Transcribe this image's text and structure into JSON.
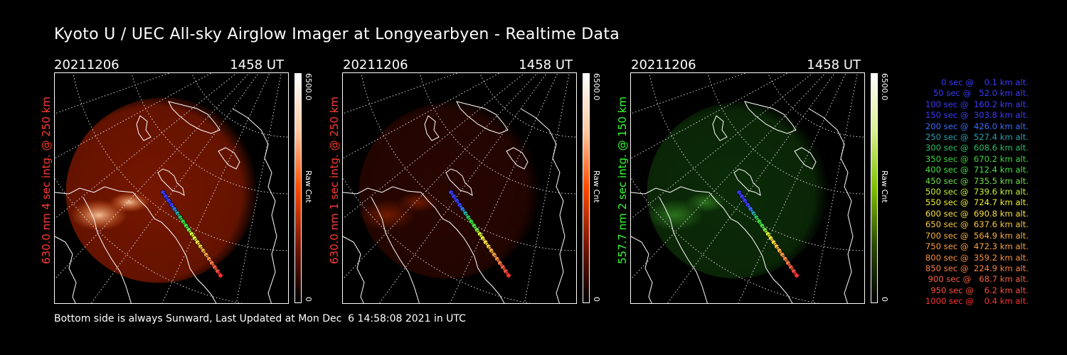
{
  "title": "Kyoto U / UEC All-sky Airglow Imager at Longyearbyen - Realtime Data",
  "footer": "Bottom side is always Sunward, Last Updated at Mon Dec  6 14:58:08 2021 in UTC",
  "panels": [
    {
      "date": "20211206",
      "time": "1458 UT",
      "ylabel": "630.0 nm 4 sec intg. @ 250 km",
      "label_color": "#ff3b2f",
      "colorbar_max": "6500.0",
      "colorbar_unit": "Raw Cnt",
      "colorbar_min": "0",
      "colorbar_colors": [
        "#000000",
        "#7a1500",
        "#ff4a00",
        "#ffc8a0",
        "#ffffff"
      ]
    },
    {
      "date": "20211206",
      "time": "1458 UT",
      "ylabel": "630.0 nm 1 sec intg. @ 250 km",
      "label_color": "#ff3b2f",
      "colorbar_max": "6500.0",
      "colorbar_unit": "Raw Cnt",
      "colorbar_min": "0",
      "colorbar_colors": [
        "#000000",
        "#7a1500",
        "#ff4a00",
        "#ffc8a0",
        "#ffffff"
      ]
    },
    {
      "date": "20211206",
      "time": "1458 UT",
      "ylabel": "557.7 nm 2 sec intg. @ 150 km",
      "label_color": "#33ff33",
      "colorbar_max": "6500.0",
      "colorbar_unit": "Raw Cnt",
      "colorbar_min": "0",
      "colorbar_colors": [
        "#000000",
        "#2a4a00",
        "#7fbf00",
        "#d8f090",
        "#ffffff"
      ]
    }
  ],
  "legend": [
    {
      "text": "0 sec @    0.1 km alt.",
      "color": "#3b3bff"
    },
    {
      "text": "50 sec @   52.0 km alt.",
      "color": "#3b3bff"
    },
    {
      "text": "100 sec @  160.2 km alt.",
      "color": "#3b3bff"
    },
    {
      "text": "150 sec @  303.8 km alt.",
      "color": "#3b3bff"
    },
    {
      "text": "200 sec @  426.0 km alt.",
      "color": "#3b6bff"
    },
    {
      "text": "250 sec @  527.4 km alt.",
      "color": "#2a9fb0"
    },
    {
      "text": "300 sec @  608.6 km alt.",
      "color": "#2abf6a"
    },
    {
      "text": "350 sec @  670.2 km alt.",
      "color": "#3ad83a"
    },
    {
      "text": "400 sec @  712.4 km alt.",
      "color": "#46e046"
    },
    {
      "text": "450 sec @  735.5 km alt.",
      "color": "#6ee046"
    },
    {
      "text": "500 sec @  739.6 km alt.",
      "color": "#c8f030"
    },
    {
      "text": "550 sec @  724.7 km alt.",
      "color": "#f0f030"
    },
    {
      "text": "600 sec @  690.8 km alt.",
      "color": "#f8e040"
    },
    {
      "text": "650 sec @  637.6 km alt.",
      "color": "#f8c840"
    },
    {
      "text": "700 sec @  564.9 km alt.",
      "color": "#f8b040"
    },
    {
      "text": "750 sec @  472.3 km alt.",
      "color": "#f8a040"
    },
    {
      "text": "800 sec @  359.2 km alt.",
      "color": "#f89040"
    },
    {
      "text": "850 sec @  224.9 km alt.",
      "color": "#f88040"
    },
    {
      "text": "900 sec @   68.7 km alt.",
      "color": "#f86040"
    },
    {
      "text": "950 sec @    6.2 km alt.",
      "color": "#f85040"
    },
    {
      "text": "1000 sec @    0.4 km alt.",
      "color": "#ff3030"
    }
  ]
}
